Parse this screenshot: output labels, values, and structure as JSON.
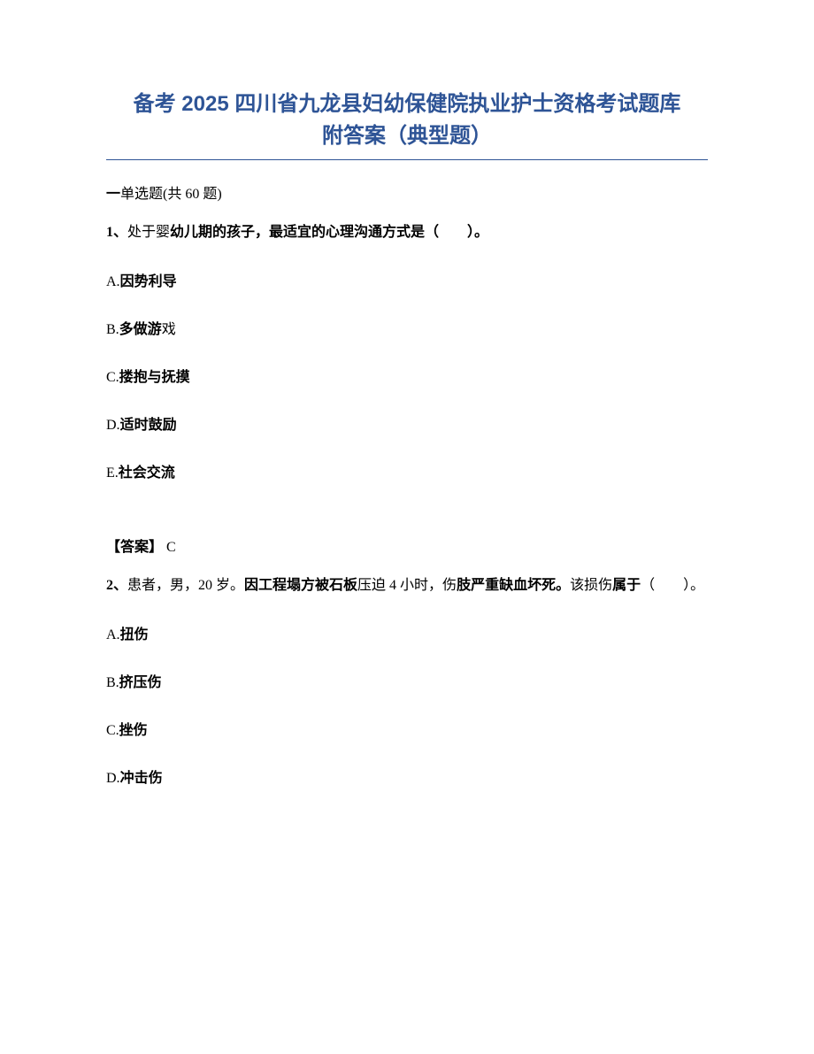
{
  "title_line1": "备考 2025 四川省九龙县妇幼保健院执业护士资格考试题库",
  "title_line2": "附答案（典型题）",
  "section": {
    "prefix": "一",
    "label": "单选题",
    "count_open": "(共 ",
    "count_num": "60",
    "count_close": " 题)"
  },
  "q1": {
    "number": "1、",
    "stem_part1": "处于婴",
    "stem_part2": "幼儿期的孩子，最适宜的心理沟通方式是（　　）。",
    "options": {
      "A_pre": "A.",
      "A_bold": "因势利导",
      "B_pre": "B.",
      "B_bold": "多做游",
      "B_tail": "戏",
      "C_pre": "C.",
      "C_bold": "搂抱与抚摸",
      "D_pre": "D.",
      "D_bold": "适时鼓励",
      "E_pre": "E.",
      "E_bold": "社会交流"
    },
    "answer_label": "【答案】",
    "answer_value": " C"
  },
  "q2": {
    "number": "2、",
    "stem_part1": "患者，男，20 岁。",
    "stem_bold": "因工程塌方被石板",
    "stem_part2": "压迫 4 小时，伤",
    "stem_bold2": "肢严重缺血坏死。",
    "stem_part3": "该损伤",
    "stem_bold3": "属于",
    "stem_part4": "（　　）。",
    "options": {
      "A_pre": "A.",
      "A_bold": "扭伤",
      "B_pre": "B.",
      "B_bold": "挤压伤",
      "C_pre": "C.",
      "C_bold": "挫伤",
      "D_pre": "D.",
      "D_bold": "冲击伤"
    }
  },
  "colors": {
    "title": "#2e5496",
    "text": "#000000",
    "background": "#ffffff"
  },
  "typography": {
    "title_fontsize": 24,
    "body_fontsize": 16,
    "title_font": "SimHei",
    "body_font": "SimSun"
  }
}
